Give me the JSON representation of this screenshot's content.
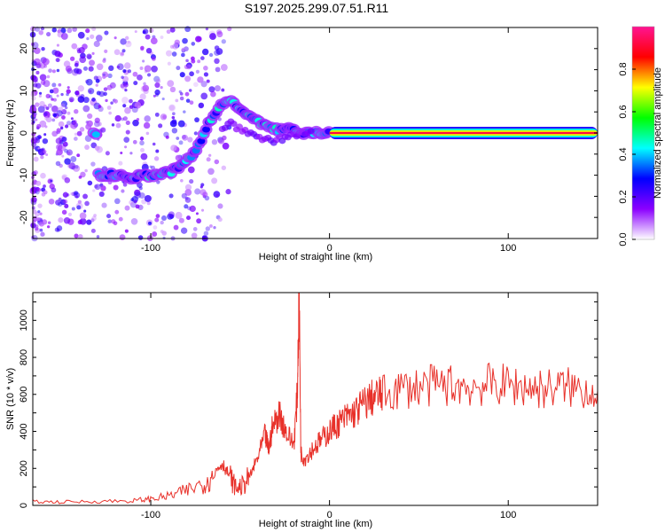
{
  "title": "S197.2025.299.07.51.R11",
  "chart_data": [
    {
      "type": "heatmap",
      "title": "S197.2025.299.07.51.R11",
      "xlabel": "Height of straight line (km)",
      "ylabel": "Frequency (Hz)",
      "xlim": [
        -166,
        150
      ],
      "ylim": [
        -25,
        25
      ],
      "xticks": [
        -100,
        0,
        100
      ],
      "yticks": [
        -20,
        -10,
        0,
        10,
        20
      ],
      "colorbar": {
        "label": "Normalized spectral amplitude",
        "range": [
          0,
          1
        ],
        "ticks": [
          "0.0",
          "0.2",
          "0.4",
          "0.6",
          "0.8"
        ],
        "colors": [
          "#ffffff",
          "#8b00ff",
          "#0000ff",
          "#00ffff",
          "#00ff00",
          "#ffff00",
          "#ff0000",
          "#ff1493"
        ]
      },
      "ridge": {
        "x": [
          -130,
          -120,
          -110,
          -100,
          -90,
          -82,
          -76,
          -72,
          -68,
          -62,
          -56,
          -50,
          -44,
          -38,
          -32,
          -26,
          -20,
          -14,
          -8,
          0,
          150
        ],
        "y": [
          -10,
          -10,
          -10.5,
          -10,
          -9.5,
          -7.5,
          -5,
          -2,
          2,
          6,
          8,
          6,
          4,
          2,
          1,
          0.5,
          1,
          0,
          0.3,
          0,
          0
        ]
      }
    },
    {
      "type": "line",
      "xlabel": "Height of straight line (km)",
      "ylabel": "SNR (10 * v/v)",
      "xlim": [
        -166,
        150
      ],
      "ylim": [
        0,
        1150
      ],
      "xticks": [
        -100,
        0,
        100
      ],
      "yticks": [
        0,
        200,
        400,
        600,
        800,
        1000
      ],
      "series": [
        {
          "name": "SNR",
          "color": "#e8312a",
          "x": [
            -166,
            -150,
            -130,
            -110,
            -100,
            -90,
            -80,
            -70,
            -64,
            -60,
            -56,
            -52,
            -48,
            -44,
            -40,
            -36,
            -34,
            -32,
            -28,
            -24,
            -20,
            -18,
            -17,
            -16,
            -14,
            -10,
            -6,
            -2,
            2,
            6,
            10,
            14,
            18,
            22,
            26,
            30,
            40,
            50,
            60,
            70,
            80,
            90,
            100,
            110,
            120,
            130,
            140,
            150
          ],
          "y": [
            20,
            18,
            22,
            25,
            35,
            50,
            80,
            120,
            180,
            230,
            160,
            90,
            110,
            170,
            260,
            380,
            300,
            420,
            500,
            390,
            330,
            600,
            1160,
            280,
            250,
            300,
            340,
            380,
            420,
            450,
            480,
            500,
            540,
            570,
            590,
            600,
            630,
            640,
            650,
            650,
            640,
            655,
            650,
            640,
            630,
            640,
            630,
            620
          ]
        }
      ]
    }
  ]
}
